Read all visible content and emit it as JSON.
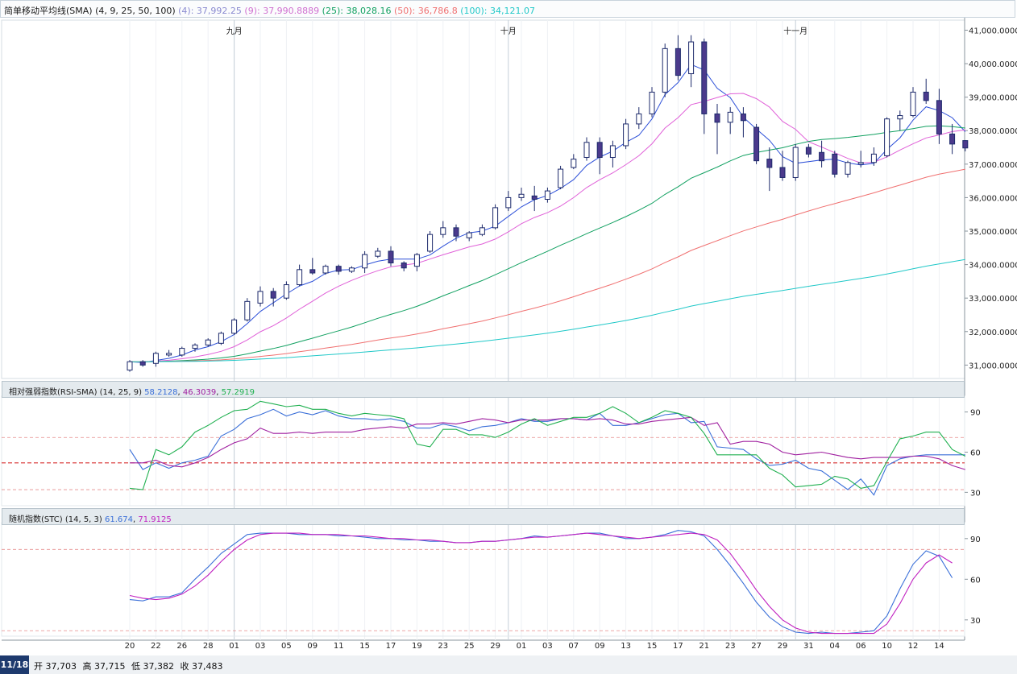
{
  "colors": {
    "ma4": "#2c4fd8",
    "ma9": "#e060d8",
    "ma25": "#10a060",
    "ma50": "#f07070",
    "ma100": "#20c8c8",
    "up_body": "#ffffff",
    "down_body": "#4b3a8c",
    "candle_edge": "#1d2a6b",
    "rsi": "#3a6fd8",
    "rsi_sma1": "#a020a0",
    "rsi_sma2": "#20b050",
    "stc_k": "#3a6fd8",
    "stc_d": "#c020c0",
    "ref_line": "#e07070"
  },
  "header": {
    "title": "简单移动平均线(SMA) (4, 9, 25, 50, 100)",
    "ma_values": [
      {
        "label": "(4): 37,992.25",
        "color": "#8a8ad0"
      },
      {
        "label": "(9): 37,990.8889",
        "color": "#d070d0"
      },
      {
        "label": "(25): 38,028.16",
        "color": "#10a060"
      },
      {
        "label": "(50): 36,786.8",
        "color": "#f07070"
      },
      {
        "label": "(100): 34,121.07",
        "color": "#20c8c8"
      }
    ]
  },
  "rsi_panel": {
    "title": "相对强弱指数(RSI-SMA) (14, 25, 9)",
    "values": [
      {
        "label": "58.2128",
        "color": "#3a6fd8"
      },
      {
        "label": "46.3039",
        "color": "#a020a0"
      },
      {
        "label": "57.2919",
        "color": "#20b050"
      }
    ]
  },
  "stc_panel": {
    "title": "随机指数(STC) (14, 5, 3)",
    "values": [
      {
        "label": "61.674",
        "color": "#3a6fd8"
      },
      {
        "label": "71.9125",
        "color": "#c020c0"
      }
    ]
  },
  "bottom": {
    "date": "11/18",
    "open_label": "开",
    "open": "37,703",
    "high_label": "高",
    "high": "37,715",
    "low_label": "低",
    "low": "37,382",
    "close_label": "收",
    "close": "37,483"
  },
  "chart_data": [
    {
      "type": "candlestick",
      "title": "简单移动平均线(SMA) (4, 9, 25, 50, 100)",
      "month_labels": [
        {
          "label": "九月",
          "index": 8
        },
        {
          "label": "十月",
          "index": 29
        },
        {
          "label": "十一月",
          "index": 51
        }
      ],
      "x_tick_labels": [
        "20",
        "22",
        "26",
        "28",
        "01",
        "03",
        "05",
        "09",
        "11",
        "15",
        "17",
        "19",
        "23",
        "25",
        "29",
        "01",
        "03",
        "07",
        "09",
        "13",
        "15",
        "17",
        "21",
        "23",
        "27",
        "29",
        "31",
        "04",
        "06",
        "10",
        "12",
        "14"
      ],
      "y_ticks": [
        31000,
        32000,
        33000,
        34000,
        35000,
        36000,
        37000,
        38000,
        39000,
        40000,
        41000
      ],
      "y_tick_labels": [
        "31,000.0000",
        "32,000.0000",
        "33,000.0000",
        "34,000.0000",
        "35,000.0000",
        "36,000.0000",
        "37,000.0000",
        "38,000.0000",
        "39,000.0000",
        "40,000.0000",
        "41,000.0000"
      ],
      "ylim": [
        30600,
        41300
      ],
      "candles": [
        {
          "o": 30850,
          "h": 31150,
          "l": 30800,
          "c": 31100
        },
        {
          "o": 31100,
          "h": 31150,
          "l": 30950,
          "c": 31000
        },
        {
          "o": 31050,
          "h": 31400,
          "l": 30950,
          "c": 31350
        },
        {
          "o": 31300,
          "h": 31450,
          "l": 31250,
          "c": 31350
        },
        {
          "o": 31300,
          "h": 31550,
          "l": 31250,
          "c": 31500
        },
        {
          "o": 31500,
          "h": 31650,
          "l": 31400,
          "c": 31600
        },
        {
          "o": 31600,
          "h": 31800,
          "l": 31550,
          "c": 31750
        },
        {
          "o": 31650,
          "h": 32000,
          "l": 31600,
          "c": 31950
        },
        {
          "o": 31950,
          "h": 32400,
          "l": 31900,
          "c": 32350
        },
        {
          "o": 32350,
          "h": 33000,
          "l": 32300,
          "c": 32900
        },
        {
          "o": 32850,
          "h": 33350,
          "l": 32750,
          "c": 33200
        },
        {
          "o": 33200,
          "h": 33300,
          "l": 32750,
          "c": 33000
        },
        {
          "o": 33000,
          "h": 33500,
          "l": 32950,
          "c": 33400
        },
        {
          "o": 33400,
          "h": 34000,
          "l": 33350,
          "c": 33850
        },
        {
          "o": 33850,
          "h": 34200,
          "l": 33700,
          "c": 33750
        },
        {
          "o": 33750,
          "h": 34000,
          "l": 33700,
          "c": 33950
        },
        {
          "o": 33950,
          "h": 34000,
          "l": 33700,
          "c": 33800
        },
        {
          "o": 33800,
          "h": 33950,
          "l": 33750,
          "c": 33900
        },
        {
          "o": 33900,
          "h": 34400,
          "l": 33750,
          "c": 34300
        },
        {
          "o": 34250,
          "h": 34500,
          "l": 34200,
          "c": 34400
        },
        {
          "o": 34400,
          "h": 34550,
          "l": 33950,
          "c": 34050
        },
        {
          "o": 34050,
          "h": 34100,
          "l": 33800,
          "c": 33900
        },
        {
          "o": 33950,
          "h": 34350,
          "l": 33800,
          "c": 34300
        },
        {
          "o": 34400,
          "h": 35000,
          "l": 34350,
          "c": 34900
        },
        {
          "o": 34900,
          "h": 35300,
          "l": 34800,
          "c": 35100
        },
        {
          "o": 35100,
          "h": 35200,
          "l": 34700,
          "c": 34850
        },
        {
          "o": 34800,
          "h": 35000,
          "l": 34700,
          "c": 34950
        },
        {
          "o": 34900,
          "h": 35200,
          "l": 34850,
          "c": 35100
        },
        {
          "o": 35100,
          "h": 35800,
          "l": 35050,
          "c": 35700
        },
        {
          "o": 35700,
          "h": 36200,
          "l": 35600,
          "c": 36000
        },
        {
          "o": 36000,
          "h": 36300,
          "l": 35900,
          "c": 36100
        },
        {
          "o": 36050,
          "h": 36350,
          "l": 35600,
          "c": 35950
        },
        {
          "o": 35950,
          "h": 36300,
          "l": 35850,
          "c": 36200
        },
        {
          "o": 36300,
          "h": 36950,
          "l": 36250,
          "c": 36850
        },
        {
          "o": 36900,
          "h": 37300,
          "l": 36850,
          "c": 37150
        },
        {
          "o": 37200,
          "h": 37800,
          "l": 37100,
          "c": 37650
        },
        {
          "o": 37650,
          "h": 37800,
          "l": 36700,
          "c": 37200
        },
        {
          "o": 37200,
          "h": 37700,
          "l": 36900,
          "c": 37550
        },
        {
          "o": 37550,
          "h": 38350,
          "l": 37450,
          "c": 38200
        },
        {
          "o": 38200,
          "h": 38700,
          "l": 38050,
          "c": 38500
        },
        {
          "o": 38500,
          "h": 39300,
          "l": 38400,
          "c": 39150
        },
        {
          "o": 39150,
          "h": 40600,
          "l": 39000,
          "c": 40450
        },
        {
          "o": 40450,
          "h": 40850,
          "l": 39500,
          "c": 39650
        },
        {
          "o": 39700,
          "h": 40850,
          "l": 39300,
          "c": 40650
        },
        {
          "o": 40650,
          "h": 40750,
          "l": 37900,
          "c": 38500
        },
        {
          "o": 38500,
          "h": 38800,
          "l": 37300,
          "c": 38250
        },
        {
          "o": 38250,
          "h": 38700,
          "l": 37900,
          "c": 38550
        },
        {
          "o": 38500,
          "h": 38700,
          "l": 37800,
          "c": 38300
        },
        {
          "o": 38100,
          "h": 38200,
          "l": 37000,
          "c": 37100
        },
        {
          "o": 37150,
          "h": 37500,
          "l": 36200,
          "c": 36900
        },
        {
          "o": 36900,
          "h": 37400,
          "l": 36500,
          "c": 36600
        },
        {
          "o": 36600,
          "h": 37600,
          "l": 36500,
          "c": 37500
        },
        {
          "o": 37500,
          "h": 37600,
          "l": 37200,
          "c": 37300
        },
        {
          "o": 37350,
          "h": 37700,
          "l": 36900,
          "c": 37100
        },
        {
          "o": 37300,
          "h": 37400,
          "l": 36600,
          "c": 36700
        },
        {
          "o": 36700,
          "h": 37100,
          "l": 36600,
          "c": 37050
        },
        {
          "o": 37000,
          "h": 37400,
          "l": 36900,
          "c": 37050
        },
        {
          "o": 37050,
          "h": 37500,
          "l": 36950,
          "c": 37300
        },
        {
          "o": 37250,
          "h": 38400,
          "l": 37200,
          "c": 38350
        },
        {
          "o": 38350,
          "h": 38600,
          "l": 38000,
          "c": 38450
        },
        {
          "o": 38450,
          "h": 39300,
          "l": 38400,
          "c": 39150
        },
        {
          "o": 39150,
          "h": 39550,
          "l": 38800,
          "c": 38900
        },
        {
          "o": 38900,
          "h": 39250,
          "l": 37600,
          "c": 37900
        },
        {
          "o": 37900,
          "h": 38200,
          "l": 37300,
          "c": 37600
        },
        {
          "o": 37703,
          "h": 37715,
          "l": 37382,
          "c": 37483
        }
      ],
      "series": [
        {
          "name": "SMA(4)",
          "period": 4
        },
        {
          "name": "SMA(9)",
          "period": 9
        },
        {
          "name": "SMA(25)",
          "period": 25
        },
        {
          "name": "SMA(50)",
          "period": 50
        },
        {
          "name": "SMA(100)",
          "period": 100
        }
      ]
    },
    {
      "type": "line",
      "title": "相对强弱指数(RSI-SMA) (14, 25, 9)",
      "ylim": [
        20,
        100
      ],
      "y_ticks": [
        30,
        60,
        90
      ],
      "y_tick_labels": [
        "30",
        "60",
        "90"
      ],
      "reference_lines": [
        32,
        52,
        71
      ],
      "series": [
        {
          "values": [
            62,
            47,
            52,
            48,
            52,
            54,
            57,
            72,
            77,
            85,
            88,
            92,
            87,
            90,
            88,
            91,
            87,
            85,
            85,
            84,
            85,
            83,
            78,
            78,
            81,
            79,
            76,
            79,
            80,
            82,
            85,
            83,
            83,
            85,
            85,
            84,
            89,
            80,
            80,
            82,
            85,
            88,
            89,
            82,
            83,
            64,
            63,
            62,
            55,
            50,
            51,
            54,
            48,
            46,
            39,
            32,
            40,
            28,
            50,
            55,
            57,
            58,
            58,
            58,
            58
          ]
        },
        {
          "values": [
            52,
            52,
            54,
            50,
            49,
            52,
            56,
            62,
            67,
            70,
            78,
            74,
            74,
            75,
            74,
            75,
            75,
            75,
            77,
            78,
            79,
            78,
            81,
            81,
            82,
            81,
            83,
            85,
            84,
            82,
            84,
            84,
            84,
            85,
            85,
            84,
            85,
            84,
            81,
            81,
            83,
            84,
            85,
            86,
            80,
            82,
            66,
            68,
            68,
            66,
            60,
            58,
            59,
            60,
            58,
            56,
            55,
            56,
            56,
            56,
            57,
            57,
            55,
            50,
            47
          ]
        },
        {
          "values": [
            33,
            32,
            62,
            58,
            64,
            75,
            80,
            86,
            91,
            92,
            98,
            96,
            94,
            95,
            92,
            92,
            89,
            87,
            89,
            88,
            87,
            85,
            66,
            64,
            77,
            77,
            73,
            73,
            71,
            75,
            81,
            85,
            80,
            83,
            86,
            86,
            89,
            94,
            89,
            82,
            86,
            91,
            89,
            86,
            74,
            58,
            58,
            58,
            58,
            48,
            43,
            34,
            35,
            36,
            42,
            40,
            33,
            35,
            53,
            70,
            72,
            75,
            75,
            62,
            57
          ]
        }
      ]
    },
    {
      "type": "line",
      "title": "随机指数(STC) (14, 5, 3)",
      "ylim": [
        18,
        100
      ],
      "y_ticks": [
        30,
        60,
        90
      ],
      "y_tick_labels": [
        "30",
        "60",
        "90"
      ],
      "reference_lines": [
        22,
        82
      ],
      "series": [
        {
          "values": [
            45,
            44,
            47,
            47,
            50,
            60,
            69,
            79,
            86,
            93,
            94,
            94,
            94,
            93,
            93,
            93,
            92,
            92,
            91,
            90,
            90,
            89,
            89,
            88,
            88,
            87,
            87,
            88,
            88,
            89,
            90,
            92,
            91,
            92,
            93,
            94,
            94,
            92,
            90,
            90,
            91,
            93,
            96,
            95,
            92,
            82,
            70,
            57,
            43,
            32,
            25,
            21,
            20,
            21,
            20,
            20,
            21,
            22,
            33,
            53,
            71,
            81,
            77,
            61
          ]
        },
        {
          "values": [
            48,
            46,
            45,
            46,
            49,
            55,
            63,
            73,
            82,
            89,
            93,
            94,
            94,
            94,
            93,
            93,
            93,
            92,
            92,
            91,
            90,
            90,
            89,
            89,
            88,
            87,
            87,
            88,
            88,
            89,
            90,
            91,
            91,
            92,
            93,
            94,
            93,
            92,
            91,
            90,
            91,
            92,
            93,
            94,
            93,
            89,
            79,
            66,
            52,
            40,
            30,
            24,
            21,
            20,
            20,
            20,
            20,
            20,
            27,
            42,
            60,
            72,
            78,
            72
          ]
        }
      ]
    }
  ]
}
